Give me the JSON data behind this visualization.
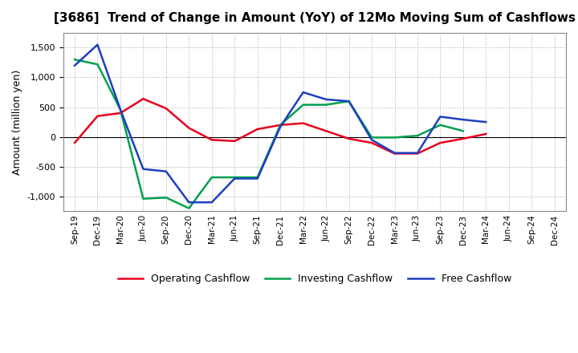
{
  "title": "[3686]  Trend of Change in Amount (YoY) of 12Mo Moving Sum of Cashflows",
  "ylabel": "Amount (million yen)",
  "x_labels": [
    "Sep-19",
    "Dec-19",
    "Mar-20",
    "Jun-20",
    "Sep-20",
    "Dec-20",
    "Mar-21",
    "Jun-21",
    "Sep-21",
    "Dec-21",
    "Mar-22",
    "Jun-22",
    "Sep-22",
    "Dec-22",
    "Mar-23",
    "Jun-23",
    "Sep-23",
    "Dec-23",
    "Mar-24",
    "Jun-24",
    "Sep-24",
    "Dec-24"
  ],
  "operating": [
    -100,
    350,
    400,
    640,
    480,
    150,
    -50,
    -70,
    130,
    200,
    230,
    100,
    -30,
    -100,
    -280,
    -280,
    -100,
    -30,
    50,
    null,
    null,
    null
  ],
  "investing": [
    1300,
    1220,
    460,
    -1040,
    -1020,
    -1200,
    -680,
    -680,
    -680,
    200,
    540,
    540,
    600,
    -10,
    -10,
    20,
    200,
    100,
    null,
    null,
    null,
    null
  ],
  "free": [
    1200,
    1550,
    460,
    -540,
    -580,
    -1100,
    -1100,
    -700,
    -700,
    170,
    750,
    630,
    600,
    -50,
    -270,
    -270,
    340,
    290,
    250,
    null,
    null,
    null
  ],
  "operating_color": "#e8001c",
  "investing_color": "#00a050",
  "free_color": "#1e3fbd",
  "ylim": [
    -1250,
    1750
  ],
  "yticks": [
    -1000,
    -500,
    0,
    500,
    1000,
    1500
  ],
  "legend_labels": [
    "Operating Cashflow",
    "Investing Cashflow",
    "Free Cashflow"
  ],
  "bg_color": "#ffffff",
  "plot_bg_color": "#ffffff",
  "grid_color": "#aaaaaa"
}
